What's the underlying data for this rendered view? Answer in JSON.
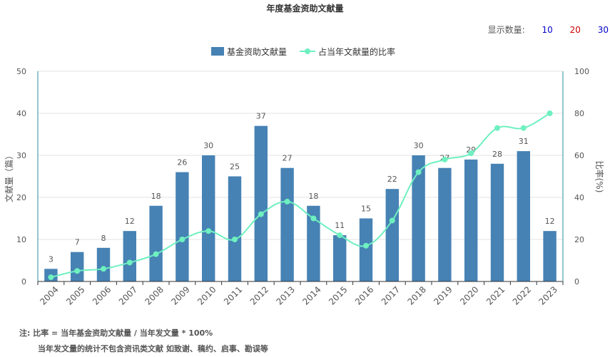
{
  "title": "年度基金资助文献量",
  "display_count": {
    "label": "显示数量:",
    "options": [
      {
        "value": "10",
        "color": "#0000cc"
      },
      {
        "value": "20",
        "color": "#cc0000"
      },
      {
        "value": "30",
        "color": "#0000cc"
      }
    ]
  },
  "notes": {
    "line1": "注:  比率 = 当年基金资助文献量 / 当年发文量 * 100%",
    "line2": "当年发文量的统计不包含资讯类文献 如致谢、稿约、启事、勘误等"
  },
  "colors": {
    "bar": "#4682b4",
    "line": "#6ef0c0",
    "axis_right": "#2c8fa0"
  },
  "chart_data": {
    "type": "bar",
    "title": "年度基金资助文献量",
    "categories": [
      "2004",
      "2005",
      "2006",
      "2007",
      "2008",
      "2009",
      "2010",
      "2011",
      "2012",
      "2013",
      "2014",
      "2015",
      "2016",
      "2017",
      "2018",
      "2019",
      "2020",
      "2021",
      "2022",
      "2023"
    ],
    "series": [
      {
        "name": "基金资助文献量",
        "type": "bar",
        "axis": "left",
        "values": [
          3,
          7,
          8,
          12,
          18,
          26,
          30,
          25,
          37,
          27,
          18,
          11,
          15,
          22,
          30,
          27,
          29,
          28,
          31,
          12
        ]
      },
      {
        "name": "占当年文献量的比率",
        "type": "line",
        "axis": "right",
        "values": [
          2,
          5,
          6,
          9,
          13,
          20,
          24,
          20,
          32,
          38,
          30,
          22,
          17,
          29,
          52,
          58,
          61,
          73,
          73,
          80
        ]
      }
    ],
    "ylabel": "文献量（篇）",
    "ylabel_right": "比率(%)",
    "ylim": [
      0,
      50
    ],
    "yticks": [
      0,
      10,
      20,
      30,
      40,
      50
    ],
    "ylim_right": [
      0,
      100
    ],
    "yticks_right": [
      0,
      20,
      40,
      60,
      80,
      100
    ],
    "grid": true,
    "legend": "top-center"
  }
}
